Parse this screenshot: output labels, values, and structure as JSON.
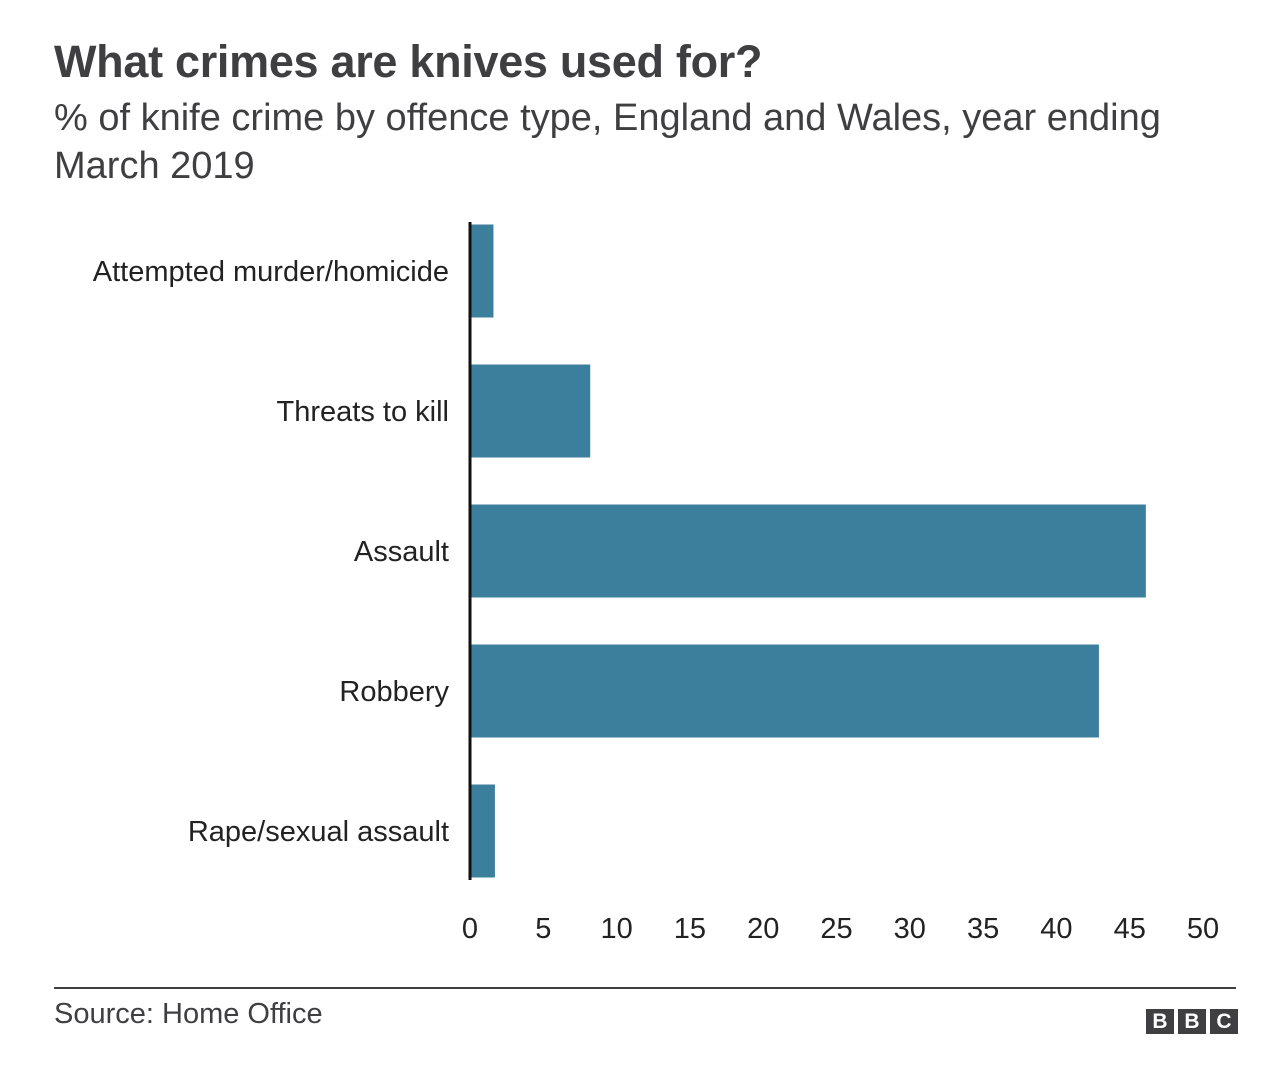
{
  "chart_data": {
    "type": "bar",
    "orientation": "horizontal",
    "title": "What crimes are knives used for?",
    "subtitle": "% of knife crime by offence type, England and Wales, year ending March 2019",
    "categories": [
      "Attempted murder/homicide",
      "Threats to kill",
      "Assault",
      "Robbery",
      "Rape/sexual assault"
    ],
    "values": [
      1.6,
      8.2,
      46.1,
      42.9,
      1.7
    ],
    "xlim": [
      0,
      50
    ],
    "xticks": [
      0,
      5,
      10,
      15,
      20,
      25,
      30,
      35,
      40,
      45,
      50
    ],
    "grid": false,
    "bar_color": "#3b7f9c",
    "source": "Source: Home Office"
  },
  "logo": [
    "B",
    "B",
    "C"
  ]
}
